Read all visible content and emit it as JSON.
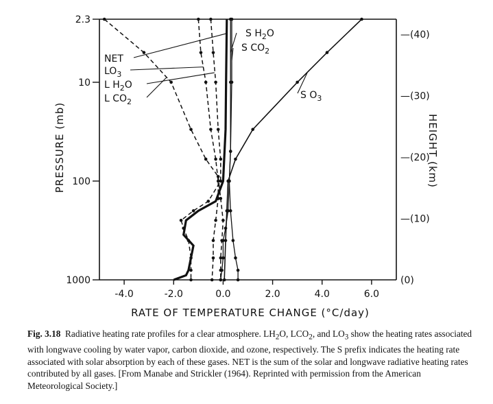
{
  "chart_data": {
    "type": "line",
    "title": "",
    "xlabel": "RATE OF TEMPERATURE CHANGE (°C/day)",
    "ylabel": "PRESSURE (mb)",
    "y2label": "HEIGHT (km)",
    "xlim": [
      -5.0,
      7.0
    ],
    "x_ticks": [
      -4.0,
      -2.0,
      0.0,
      2.0,
      4.0,
      6.0
    ],
    "x_tick_labels": [
      "-4.0",
      "-2.0",
      "0.0",
      "2.0",
      "4.0",
      "6.0"
    ],
    "y_scale": "log",
    "ylim": [
      1000,
      2.3
    ],
    "y_ticks": [
      2.3,
      10,
      100,
      1000
    ],
    "y_tick_labels": [
      "2.3",
      "10",
      "100",
      "1000"
    ],
    "height_ticks_km": [
      0,
      10,
      20,
      30,
      40
    ],
    "height_tick_labels": [
      "(0)",
      "—(10)",
      "—(20)",
      "—(30)",
      "—(40)"
    ],
    "series": [
      {
        "name": "NET",
        "style": "solid-thick",
        "points": [
          [
            0.15,
            2.3
          ],
          [
            0.12,
            10
          ],
          [
            0.1,
            30
          ],
          [
            0.0,
            100
          ],
          [
            -0.3,
            160
          ],
          [
            -1.0,
            200
          ],
          [
            -1.5,
            250
          ],
          [
            -1.6,
            350
          ],
          [
            -1.2,
            450
          ],
          [
            -1.3,
            600
          ],
          [
            -1.4,
            800
          ],
          [
            -1.5,
            900
          ],
          [
            -2.0,
            1000
          ]
        ]
      },
      {
        "name": "LO3",
        "style": "dashed",
        "points": [
          [
            -1.0,
            2.3
          ],
          [
            -0.9,
            5
          ],
          [
            -0.7,
            10
          ],
          [
            -0.5,
            30
          ],
          [
            -0.3,
            60
          ],
          [
            -0.2,
            100
          ],
          [
            -0.2,
            150
          ],
          [
            -0.3,
            250
          ],
          [
            -0.4,
            400
          ],
          [
            -0.4,
            600
          ],
          [
            -0.45,
            1000
          ]
        ]
      },
      {
        "name": "LH2O",
        "style": "dashed",
        "points": [
          [
            -0.5,
            2.3
          ],
          [
            -0.4,
            5
          ],
          [
            -0.3,
            10
          ],
          [
            -0.2,
            30
          ],
          [
            -0.1,
            60
          ],
          [
            -0.1,
            100
          ],
          [
            -0.6,
            160
          ],
          [
            -1.2,
            200
          ],
          [
            -1.7,
            250
          ],
          [
            -1.6,
            300
          ],
          [
            -1.4,
            400
          ],
          [
            -1.3,
            600
          ],
          [
            -1.3,
            800
          ],
          [
            -1.3,
            1000
          ]
        ]
      },
      {
        "name": "LCO2",
        "style": "dashed",
        "points": [
          [
            -4.8,
            2.3
          ],
          [
            -3.2,
            5
          ],
          [
            -2.1,
            10
          ],
          [
            -1.3,
            30
          ],
          [
            -0.7,
            60
          ],
          [
            -0.2,
            90
          ],
          [
            -0.1,
            150
          ],
          [
            0.0,
            250
          ],
          [
            -0.05,
            400
          ],
          [
            -0.1,
            600
          ],
          [
            -0.1,
            800
          ],
          [
            -0.1,
            1000
          ]
        ]
      },
      {
        "name": "SH2O",
        "style": "solid-thin-dotted",
        "points": [
          [
            0.3,
            2.3
          ],
          [
            0.3,
            10
          ],
          [
            0.3,
            50
          ],
          [
            0.25,
            100
          ],
          [
            0.3,
            200
          ],
          [
            0.4,
            400
          ],
          [
            0.5,
            600
          ],
          [
            0.6,
            800
          ],
          [
            0.6,
            1000
          ]
        ]
      },
      {
        "name": "SCO2",
        "style": "solid-thin-dotted",
        "points": [
          [
            0.35,
            2.3
          ],
          [
            0.35,
            10
          ],
          [
            0.3,
            50
          ],
          [
            0.25,
            100
          ],
          [
            0.2,
            200
          ],
          [
            0.1,
            300
          ],
          [
            0.0,
            400
          ],
          [
            0.0,
            600
          ],
          [
            -0.05,
            800
          ],
          [
            -0.1,
            1000
          ]
        ]
      },
      {
        "name": "SO3",
        "style": "solid",
        "points": [
          [
            5.6,
            2.3
          ],
          [
            4.2,
            5
          ],
          [
            3.0,
            10
          ],
          [
            1.2,
            30
          ],
          [
            0.5,
            60
          ],
          [
            0.2,
            100
          ],
          [
            0.15,
            200
          ],
          [
            0.1,
            400
          ],
          [
            0.05,
            1000
          ]
        ]
      }
    ],
    "annotations": [
      "SH2O",
      "SCO2",
      "NET",
      "LO3",
      "LH2O",
      "LCO2",
      "SO3"
    ]
  },
  "labels": {
    "SH2O": {
      "main": "S H",
      "sub": "2",
      "tail": "O"
    },
    "SCO2": {
      "main": "S CO",
      "sub": "2",
      "tail": ""
    },
    "NET": {
      "main": "NET",
      "sub": "",
      "tail": ""
    },
    "LO3": {
      "main": "LO",
      "sub": "3",
      "tail": ""
    },
    "LH2O": {
      "main": "L H",
      "sub": "2",
      "tail": "O"
    },
    "LCO2": {
      "main": "L CO",
      "sub": "2",
      "tail": ""
    },
    "SO3": {
      "main": "S O",
      "sub": "3",
      "tail": ""
    }
  },
  "caption": {
    "fig": "Fig. 3.18",
    "line1": "Radiative heating rate profiles for a clear atmosphere. LH",
    "s1": "2",
    "line2": "O, LCO",
    "s2": "2",
    "line3": ", and LO",
    "s3": "3",
    "line4": " show the heating rates associated with longwave cooling by water vapor, carbon dioxide, and ozone, respectively. The S prefix indicates the heating rate associated with solar absorption by each of these gases. NET is the sum of the solar and longwave radiative heating rates contributed by all gases. [From Manabe and Strickler (1964). Reprinted with permission from the American Meteorological Society.]"
  }
}
